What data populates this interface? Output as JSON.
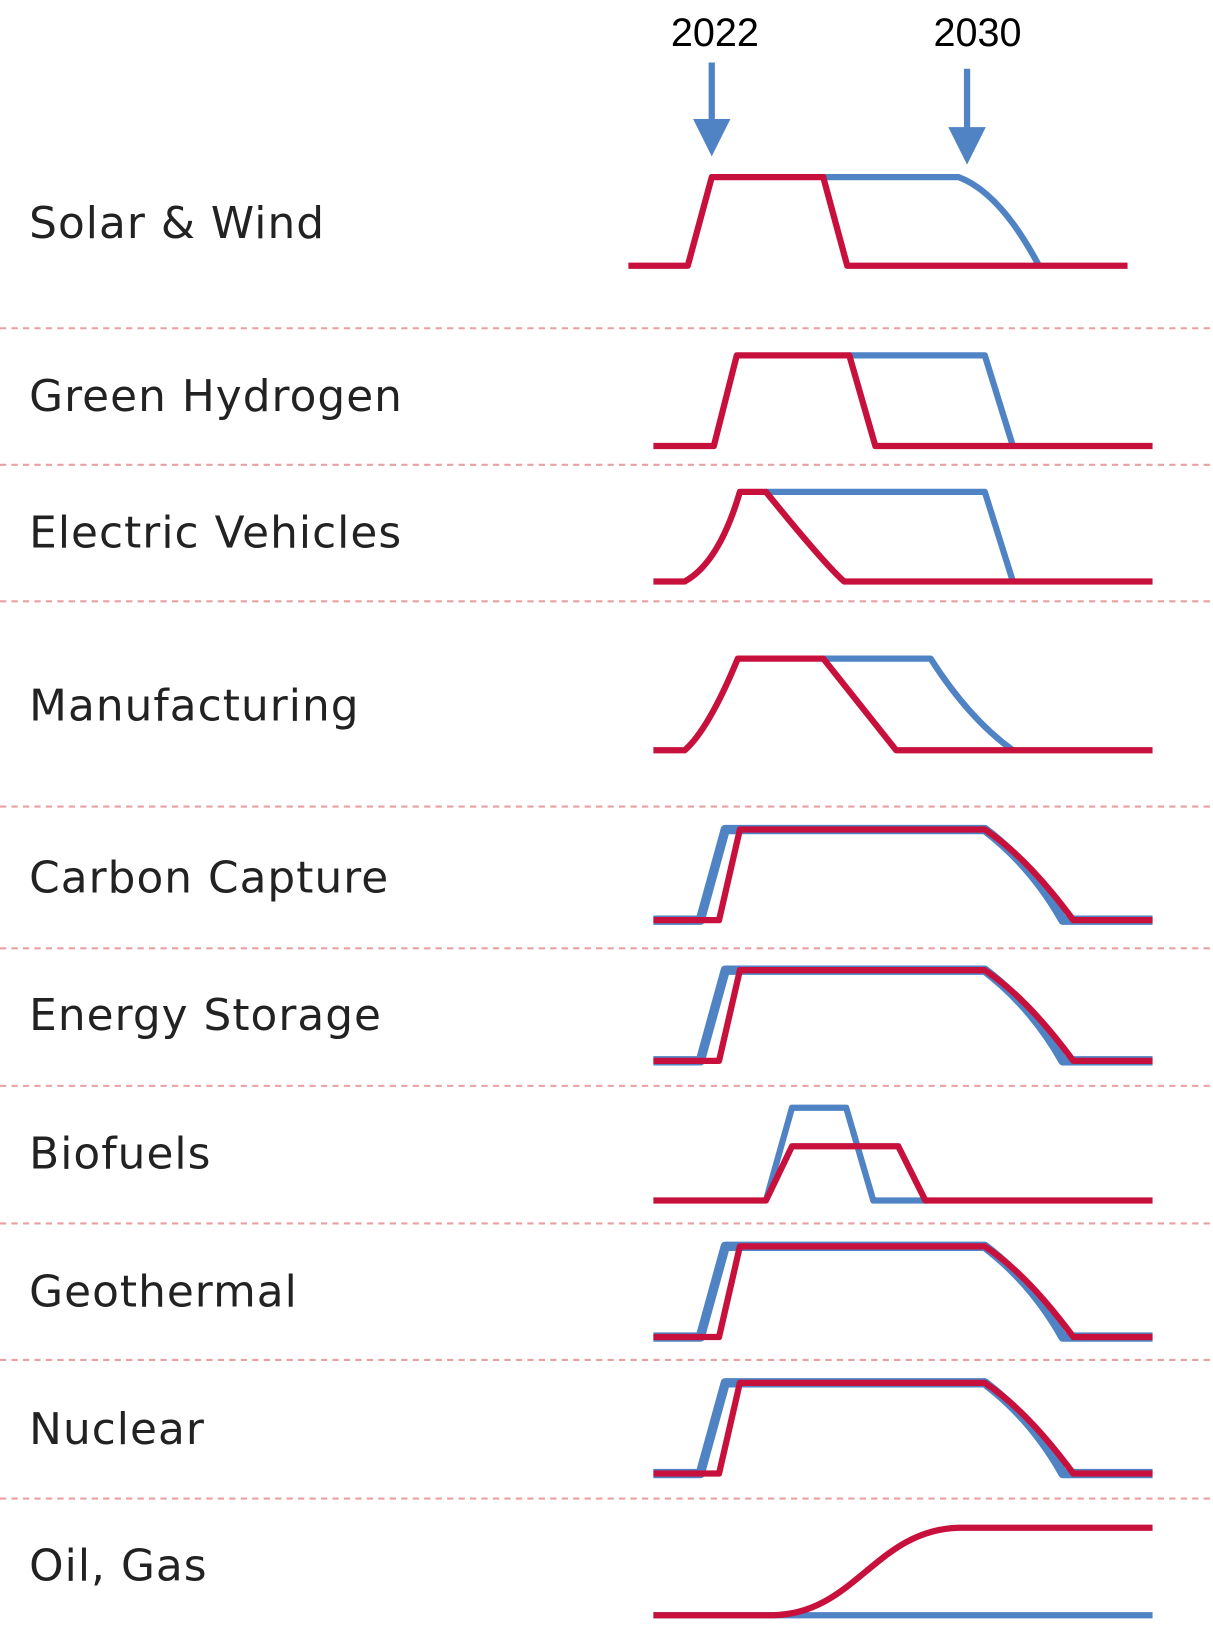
{
  "year_markers": [
    "2022",
    "2030"
  ],
  "rows": [
    "Solar & Wind",
    "Green Hydrogen",
    "Electric Vehicles",
    "Manufacturing",
    "Carbon Capture",
    "Energy Storage",
    "Biofuels",
    "Geothermal",
    "Nuclear",
    "Oil, Gas"
  ]
}
